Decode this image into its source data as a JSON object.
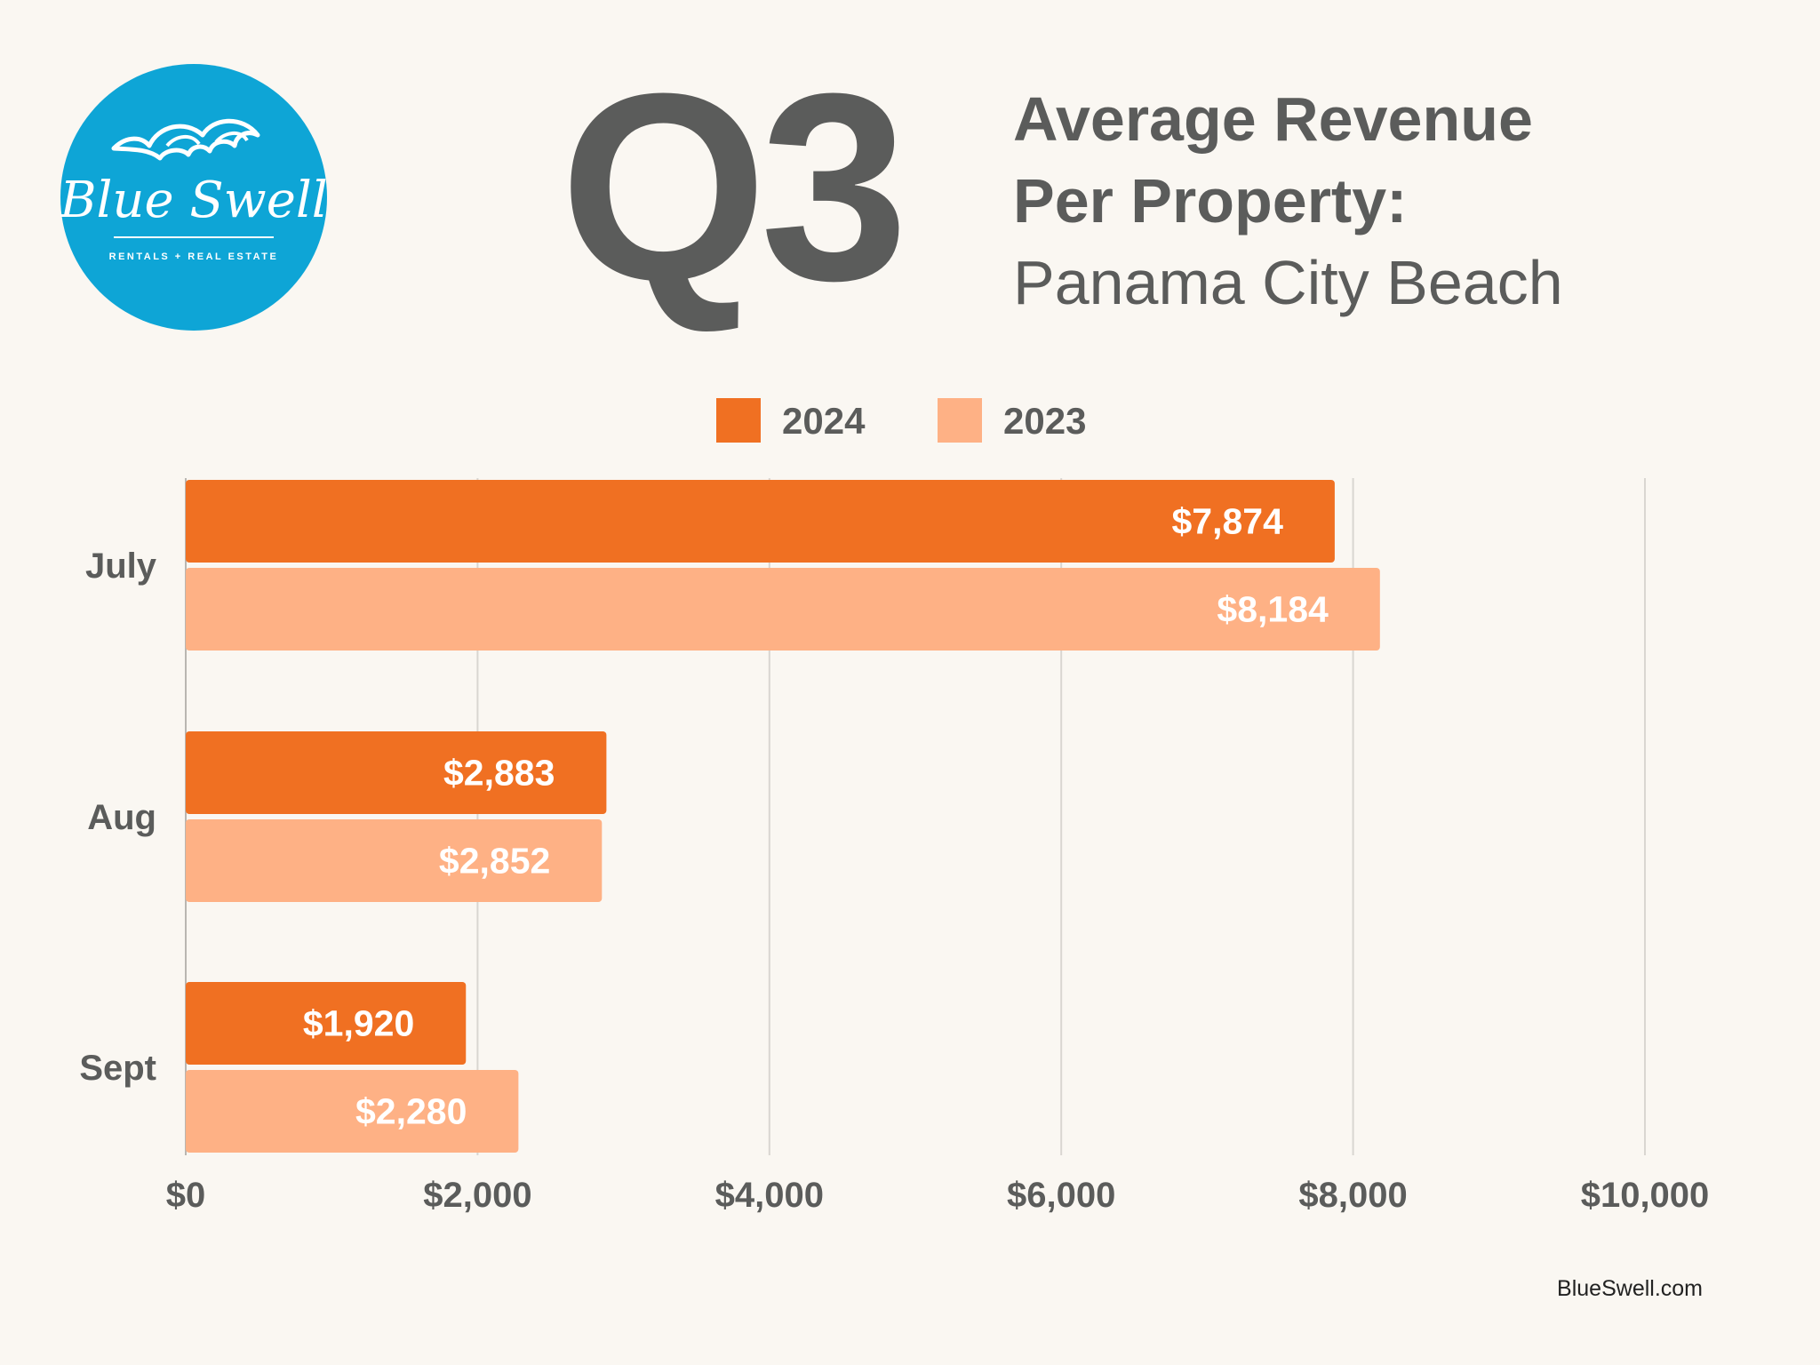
{
  "header": {
    "big_label": "Q3",
    "title_line1": "Average Revenue",
    "title_line2": "Per Property:",
    "subtitle": "Panama City Beach"
  },
  "logo": {
    "brand": "Blue Swell",
    "tagline": "RENTALS + REAL ESTATE",
    "icon": "wave-icon"
  },
  "footer": {
    "url": "BlueSwell.com"
  },
  "colors": {
    "series_2024": "#f07022",
    "series_2023": "#feb185",
    "text": "#5b5c5b",
    "grid": "#d9d6d1",
    "logo_bg": "#0ea5d6"
  },
  "chart_data": {
    "type": "bar",
    "orientation": "horizontal",
    "categories": [
      "July",
      "Aug",
      "Sept"
    ],
    "series": [
      {
        "name": "2024",
        "values": [
          7874,
          2883,
          1920
        ],
        "labels": [
          "$7,874",
          "$2,883",
          "$1,920"
        ]
      },
      {
        "name": "2023",
        "values": [
          8184,
          2852,
          2280
        ],
        "labels": [
          "$8,184",
          "$2,852",
          "$2,280"
        ]
      }
    ],
    "xlim": [
      0,
      10000
    ],
    "xticks": [
      0,
      2000,
      4000,
      6000,
      8000,
      10000
    ],
    "xtick_labels": [
      "$0",
      "$2,000",
      "$4,000",
      "$6,000",
      "$8,000",
      "$10,000"
    ],
    "grid": "vertical",
    "legend_position": "top-center"
  }
}
